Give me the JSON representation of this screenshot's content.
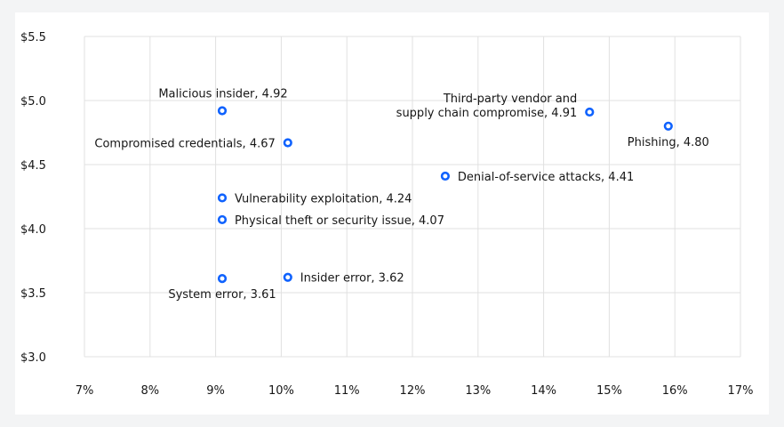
{
  "chart_data": {
    "type": "scatter",
    "title": "",
    "xlabel": "",
    "ylabel": "",
    "xlim": [
      7,
      17
    ],
    "ylim": [
      3.0,
      5.5
    ],
    "grid": true,
    "x_ticks": [
      7,
      8,
      9,
      10,
      11,
      12,
      13,
      14,
      15,
      16,
      17
    ],
    "x_tick_labels": [
      "7%",
      "8%",
      "9%",
      "10%",
      "11%",
      "12%",
      "13%",
      "14%",
      "15%",
      "16%",
      "17%"
    ],
    "y_ticks": [
      3.0,
      3.5,
      4.0,
      4.5,
      5.0,
      5.5
    ],
    "y_tick_labels": [
      "$3.0",
      "$3.5",
      "$4.0",
      "$4.5",
      "$5.0",
      "$5.5"
    ],
    "point_color": "#0f62fe",
    "points": [
      {
        "x": 9.1,
        "y": 4.92,
        "label": [
          "Malicious insider, 4.92"
        ],
        "label_pos": "above-left"
      },
      {
        "x": 10.1,
        "y": 4.67,
        "label": [
          "Compromised credentials, 4.67"
        ],
        "label_pos": "left"
      },
      {
        "x": 14.7,
        "y": 4.91,
        "label": [
          "Third-party vendor and",
          "supply chain compromise, 4.91"
        ],
        "label_pos": "left-stacked"
      },
      {
        "x": 15.9,
        "y": 4.8,
        "label": [
          "Phishing, 4.80"
        ],
        "label_pos": "below"
      },
      {
        "x": 12.5,
        "y": 4.41,
        "label": [
          "Denial-of-service attacks, 4.41"
        ],
        "label_pos": "right"
      },
      {
        "x": 9.1,
        "y": 4.24,
        "label": [
          "Vulnerability exploitation, 4.24"
        ],
        "label_pos": "right"
      },
      {
        "x": 9.1,
        "y": 4.07,
        "label": [
          "Physical theft or security issue, 4.07"
        ],
        "label_pos": "right"
      },
      {
        "x": 9.1,
        "y": 3.61,
        "label": [
          "System error, 3.61"
        ],
        "label_pos": "below"
      },
      {
        "x": 10.1,
        "y": 3.62,
        "label": [
          "Insider error, 3.62"
        ],
        "label_pos": "right"
      }
    ]
  }
}
